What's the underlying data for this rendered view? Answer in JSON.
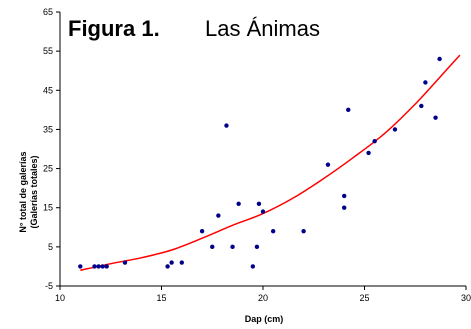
{
  "chart_data": {
    "type": "scatter",
    "title": "Figura 1.",
    "subtitle": "Las Ánimas",
    "xlabel": "Dap (cm)",
    "ylabel": "N° total de galerías",
    "ylabel2": "(Galerías totales)",
    "xlim": [
      10,
      30
    ],
    "ylim": [
      -5,
      65
    ],
    "xticks": [
      "10",
      "15",
      "20",
      "25",
      "30"
    ],
    "yticks": [
      "-5",
      "5",
      "15",
      "25",
      "35",
      "45",
      "55",
      "65"
    ],
    "points": [
      {
        "x": 11.0,
        "y": 0
      },
      {
        "x": 11.7,
        "y": 0
      },
      {
        "x": 11.9,
        "y": 0
      },
      {
        "x": 12.1,
        "y": 0
      },
      {
        "x": 12.3,
        "y": 0
      },
      {
        "x": 13.2,
        "y": 1
      },
      {
        "x": 15.3,
        "y": 0
      },
      {
        "x": 15.5,
        "y": 1
      },
      {
        "x": 16.0,
        "y": 1
      },
      {
        "x": 17.0,
        "y": 9
      },
      {
        "x": 17.5,
        "y": 5
      },
      {
        "x": 17.8,
        "y": 13
      },
      {
        "x": 18.2,
        "y": 36
      },
      {
        "x": 18.5,
        "y": 5
      },
      {
        "x": 18.8,
        "y": 16
      },
      {
        "x": 19.5,
        "y": 0
      },
      {
        "x": 19.7,
        "y": 5
      },
      {
        "x": 19.8,
        "y": 16
      },
      {
        "x": 20.0,
        "y": 14
      },
      {
        "x": 20.5,
        "y": 9
      },
      {
        "x": 22.0,
        "y": 9
      },
      {
        "x": 23.2,
        "y": 26
      },
      {
        "x": 24.0,
        "y": 18
      },
      {
        "x": 24.0,
        "y": 15
      },
      {
        "x": 24.2,
        "y": 40
      },
      {
        "x": 25.2,
        "y": 29
      },
      {
        "x": 25.5,
        "y": 32
      },
      {
        "x": 26.5,
        "y": 35
      },
      {
        "x": 27.8,
        "y": 41
      },
      {
        "x": 28.0,
        "y": 47
      },
      {
        "x": 28.5,
        "y": 38
      },
      {
        "x": 28.7,
        "y": 53
      }
    ],
    "trendline": {
      "type": "curve",
      "points": [
        {
          "x": 11.0,
          "y": -1
        },
        {
          "x": 12.5,
          "y": 0.7
        },
        {
          "x": 14.0,
          "y": 2.2
        },
        {
          "x": 15.5,
          "y": 4.2
        },
        {
          "x": 17.0,
          "y": 7.2
        },
        {
          "x": 18.5,
          "y": 10.5
        },
        {
          "x": 20.0,
          "y": 13.5
        },
        {
          "x": 21.5,
          "y": 17.5
        },
        {
          "x": 23.0,
          "y": 22.5
        },
        {
          "x": 24.5,
          "y": 28
        },
        {
          "x": 26.0,
          "y": 34
        },
        {
          "x": 27.5,
          "y": 41.5
        },
        {
          "x": 29.0,
          "y": 50
        },
        {
          "x": 29.7,
          "y": 54
        }
      ]
    },
    "grid": false,
    "legend": "none",
    "colors": {
      "points": "#00008b",
      "trendline": "#ff0000",
      "axis": "#000000"
    }
  }
}
